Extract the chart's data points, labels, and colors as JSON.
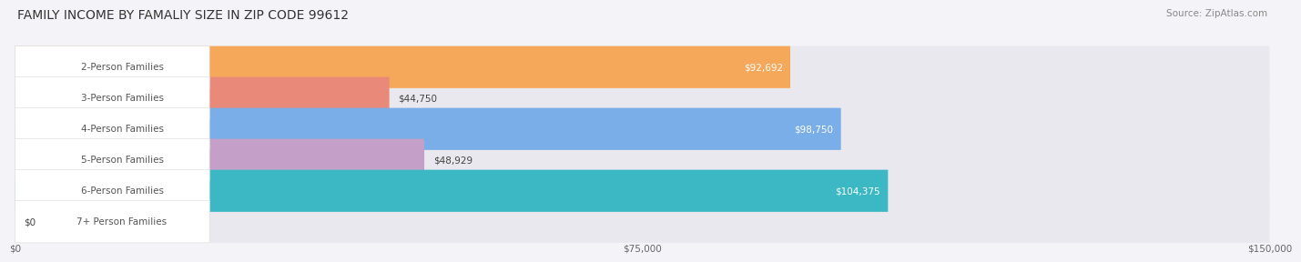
{
  "title": "FAMILY INCOME BY FAMALIY SIZE IN ZIP CODE 99612",
  "source": "Source: ZipAtlas.com",
  "categories": [
    "2-Person Families",
    "3-Person Families",
    "4-Person Families",
    "5-Person Families",
    "6-Person Families",
    "7+ Person Families"
  ],
  "values": [
    92692,
    44750,
    98750,
    48929,
    104375,
    0
  ],
  "bar_colors": [
    "#F5A85A",
    "#E8897A",
    "#7AAEE8",
    "#C4A0C8",
    "#3BB8C3",
    "#C8CCED"
  ],
  "bar_bg_color": "#E8E8EE",
  "label_bg_color": "#FFFFFF",
  "label_text_color": "#555555",
  "value_labels": [
    "$92,692",
    "$44,750",
    "$98,750",
    "$48,929",
    "$104,375",
    "$0"
  ],
  "value_inside": [
    true,
    false,
    true,
    false,
    true,
    false
  ],
  "xlim": [
    0,
    150000
  ],
  "xticks": [
    0,
    75000,
    150000
  ],
  "xtick_labels": [
    "$0",
    "$75,000",
    "$150,000"
  ],
  "title_fontsize": 10,
  "source_fontsize": 7.5,
  "bar_label_fontsize": 7.5,
  "value_fontsize": 7.5,
  "background_color": "#F4F4F8"
}
